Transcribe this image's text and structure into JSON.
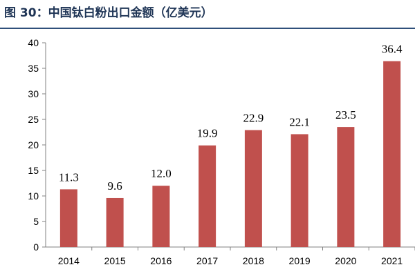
{
  "title": "图 30：中国钛白粉出口金额（亿美元）",
  "chart_data": {
    "type": "bar",
    "title": "图 30：中国钛白粉出口金额（亿美元）",
    "categories": [
      "2014",
      "2015",
      "2016",
      "2017",
      "2018",
      "2019",
      "2020",
      "2021"
    ],
    "values": [
      11.3,
      9.6,
      12.0,
      19.9,
      22.9,
      22.1,
      23.5,
      36.4
    ],
    "value_labels": [
      "11.3",
      "9.6",
      "12.0",
      "19.9",
      "22.9",
      "22.1",
      "23.5",
      "36.4"
    ],
    "ylim": [
      0,
      40
    ],
    "yticks": [
      0,
      5,
      10,
      15,
      20,
      25,
      30,
      35,
      40
    ],
    "xlabel": "",
    "ylabel": "",
    "grid": false,
    "bar_color": "#c0504d"
  }
}
